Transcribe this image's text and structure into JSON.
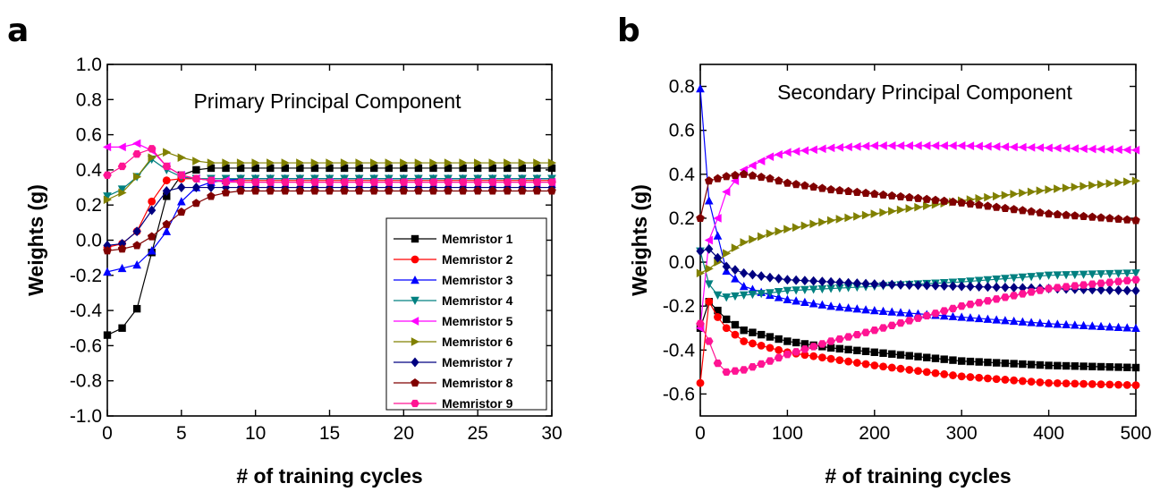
{
  "chart_data": [
    {
      "panel": "a",
      "type": "line",
      "title": "Primary Principal Component",
      "xlabel": "# of training cycles",
      "ylabel": "Weights (g)",
      "xlim": [
        0,
        30
      ],
      "ylim": [
        -1.0,
        1.0
      ],
      "xticks": [
        "0",
        "5",
        "10",
        "15",
        "20",
        "25",
        "30"
      ],
      "yticks": [
        "-1.0",
        "-0.8",
        "-0.6",
        "-0.4",
        "-0.2",
        "0.0",
        "0.2",
        "0.4",
        "0.6",
        "0.8",
        "1.0"
      ],
      "legend_position": "lower-right",
      "x": [
        0,
        1,
        2,
        3,
        4,
        5,
        6,
        7,
        8,
        9,
        10,
        11,
        12,
        13,
        14,
        15,
        16,
        17,
        18,
        19,
        20,
        21,
        22,
        23,
        24,
        25,
        26,
        27,
        28,
        29,
        30
      ],
      "series": [
        {
          "name": "Memristor 1",
          "color": "#000000",
          "marker": "square",
          "values": [
            -0.54,
            -0.5,
            -0.39,
            -0.07,
            0.25,
            0.37,
            0.4,
            0.41,
            0.41,
            0.41,
            0.41,
            0.41,
            0.41,
            0.41,
            0.41,
            0.41,
            0.41,
            0.41,
            0.41,
            0.41,
            0.41,
            0.41,
            0.41,
            0.41,
            0.41,
            0.41,
            0.41,
            0.41,
            0.41,
            0.41,
            0.41
          ]
        },
        {
          "name": "Memristor 2",
          "color": "#ff0000",
          "marker": "circle",
          "values": [
            -0.04,
            -0.02,
            0.05,
            0.22,
            0.34,
            0.35,
            0.35,
            0.34,
            0.34,
            0.34,
            0.34,
            0.34,
            0.34,
            0.34,
            0.34,
            0.34,
            0.34,
            0.34,
            0.34,
            0.34,
            0.34,
            0.34,
            0.34,
            0.34,
            0.34,
            0.34,
            0.34,
            0.34,
            0.34,
            0.34,
            0.34
          ]
        },
        {
          "name": "Memristor 3",
          "color": "#0000ff",
          "marker": "triangle-up",
          "values": [
            -0.18,
            -0.16,
            -0.14,
            -0.06,
            0.05,
            0.22,
            0.3,
            0.33,
            0.34,
            0.35,
            0.35,
            0.35,
            0.35,
            0.35,
            0.35,
            0.35,
            0.35,
            0.35,
            0.35,
            0.35,
            0.35,
            0.35,
            0.35,
            0.35,
            0.35,
            0.35,
            0.35,
            0.35,
            0.35,
            0.35,
            0.35
          ]
        },
        {
          "name": "Memristor 4",
          "color": "#008080",
          "marker": "triangle-down",
          "values": [
            0.25,
            0.29,
            0.36,
            0.46,
            0.4,
            0.36,
            0.35,
            0.35,
            0.35,
            0.35,
            0.35,
            0.35,
            0.35,
            0.35,
            0.35,
            0.35,
            0.35,
            0.35,
            0.35,
            0.35,
            0.35,
            0.35,
            0.35,
            0.35,
            0.35,
            0.35,
            0.35,
            0.35,
            0.35,
            0.35,
            0.35
          ]
        },
        {
          "name": "Memristor 5",
          "color": "#ff00ff",
          "marker": "triangle-left",
          "values": [
            0.53,
            0.53,
            0.55,
            0.51,
            0.42,
            0.37,
            0.35,
            0.34,
            0.34,
            0.33,
            0.33,
            0.33,
            0.33,
            0.33,
            0.33,
            0.33,
            0.33,
            0.33,
            0.33,
            0.33,
            0.33,
            0.33,
            0.33,
            0.33,
            0.33,
            0.33,
            0.33,
            0.33,
            0.33,
            0.33,
            0.33
          ]
        },
        {
          "name": "Memristor 6",
          "color": "#808000",
          "marker": "triangle-right",
          "values": [
            0.23,
            0.27,
            0.36,
            0.47,
            0.5,
            0.47,
            0.45,
            0.44,
            0.44,
            0.44,
            0.44,
            0.44,
            0.44,
            0.44,
            0.44,
            0.44,
            0.44,
            0.44,
            0.44,
            0.44,
            0.44,
            0.44,
            0.44,
            0.44,
            0.44,
            0.44,
            0.44,
            0.44,
            0.44,
            0.44,
            0.44
          ]
        },
        {
          "name": "Memristor 7",
          "color": "#000080",
          "marker": "diamond",
          "values": [
            -0.03,
            -0.02,
            0.05,
            0.17,
            0.28,
            0.3,
            0.3,
            0.3,
            0.3,
            0.3,
            0.3,
            0.3,
            0.3,
            0.3,
            0.3,
            0.3,
            0.3,
            0.3,
            0.3,
            0.3,
            0.3,
            0.3,
            0.3,
            0.3,
            0.3,
            0.3,
            0.3,
            0.3,
            0.3,
            0.3,
            0.3
          ]
        },
        {
          "name": "Memristor 8",
          "color": "#800000",
          "marker": "pentagon",
          "values": [
            -0.06,
            -0.05,
            -0.03,
            0.02,
            0.09,
            0.16,
            0.21,
            0.25,
            0.27,
            0.28,
            0.28,
            0.28,
            0.28,
            0.28,
            0.28,
            0.28,
            0.28,
            0.28,
            0.28,
            0.28,
            0.28,
            0.28,
            0.28,
            0.28,
            0.28,
            0.28,
            0.28,
            0.28,
            0.28,
            0.28,
            0.28
          ]
        },
        {
          "name": "Memristor 9",
          "color": "#ff1493",
          "marker": "hexagon",
          "values": [
            0.37,
            0.42,
            0.49,
            0.52,
            0.42,
            0.37,
            0.35,
            0.34,
            0.33,
            0.33,
            0.33,
            0.33,
            0.33,
            0.33,
            0.33,
            0.33,
            0.33,
            0.33,
            0.33,
            0.33,
            0.33,
            0.33,
            0.33,
            0.33,
            0.33,
            0.33,
            0.33,
            0.33,
            0.33,
            0.33,
            0.33
          ]
        }
      ]
    },
    {
      "panel": "b",
      "type": "line",
      "title": "Secondary Principal Component",
      "xlabel": "# of training cycles",
      "ylabel": "Weights (g)",
      "xlim": [
        0,
        500
      ],
      "ylim": [
        -0.7,
        0.9
      ],
      "xticks": [
        "0",
        "100",
        "200",
        "300",
        "400",
        "500"
      ],
      "yticks": [
        "-0.6",
        "-0.4",
        "-0.2",
        "0.0",
        "0.2",
        "0.4",
        "0.6",
        "0.8"
      ],
      "x_step": 10,
      "series_anchors": [
        {
          "color": "#000000",
          "marker": "square",
          "x": [
            0,
            10,
            20,
            30,
            50,
            80,
            100,
            150,
            200,
            300,
            400,
            500
          ],
          "y": [
            -0.3,
            -0.18,
            -0.22,
            -0.26,
            -0.31,
            -0.34,
            -0.36,
            -0.39,
            -0.41,
            -0.45,
            -0.47,
            -0.48
          ]
        },
        {
          "color": "#ff0000",
          "marker": "circle",
          "x": [
            0,
            10,
            20,
            30,
            50,
            80,
            100,
            150,
            200,
            300,
            400,
            500
          ],
          "y": [
            -0.55,
            -0.18,
            -0.25,
            -0.3,
            -0.36,
            -0.39,
            -0.41,
            -0.44,
            -0.47,
            -0.52,
            -0.55,
            -0.56
          ]
        },
        {
          "color": "#0000ff",
          "marker": "triangle-up",
          "x": [
            0,
            10,
            20,
            30,
            50,
            80,
            100,
            150,
            200,
            300,
            400,
            500
          ],
          "y": [
            0.79,
            0.28,
            0.12,
            -0.04,
            -0.11,
            -0.15,
            -0.17,
            -0.2,
            -0.22,
            -0.25,
            -0.28,
            -0.3
          ]
        },
        {
          "color": "#008080",
          "marker": "triangle-down",
          "x": [
            0,
            10,
            20,
            30,
            50,
            80,
            100,
            150,
            200,
            300,
            400,
            500
          ],
          "y": [
            0.05,
            -0.1,
            -0.15,
            -0.16,
            -0.15,
            -0.14,
            -0.13,
            -0.12,
            -0.11,
            -0.09,
            -0.06,
            -0.05
          ]
        },
        {
          "color": "#ff00ff",
          "marker": "triangle-left",
          "x": [
            0,
            10,
            20,
            30,
            50,
            80,
            100,
            150,
            200,
            300,
            400,
            500
          ],
          "y": [
            -0.3,
            0.1,
            0.2,
            0.32,
            0.42,
            0.48,
            0.5,
            0.52,
            0.53,
            0.53,
            0.52,
            0.51
          ]
        },
        {
          "color": "#808000",
          "marker": "triangle-right",
          "x": [
            0,
            10,
            20,
            30,
            50,
            80,
            100,
            150,
            200,
            300,
            400,
            500
          ],
          "y": [
            -0.05,
            -0.03,
            0.0,
            0.04,
            0.09,
            0.13,
            0.15,
            0.19,
            0.22,
            0.28,
            0.33,
            0.37
          ]
        },
        {
          "color": "#000080",
          "marker": "diamond",
          "x": [
            0,
            10,
            20,
            30,
            50,
            80,
            100,
            150,
            200,
            300,
            400,
            500
          ],
          "y": [
            0.05,
            0.06,
            0.02,
            -0.02,
            -0.05,
            -0.07,
            -0.08,
            -0.09,
            -0.1,
            -0.11,
            -0.12,
            -0.13
          ]
        },
        {
          "color": "#800000",
          "marker": "pentagon",
          "x": [
            0,
            10,
            20,
            30,
            50,
            80,
            100,
            150,
            200,
            300,
            400,
            500
          ],
          "y": [
            0.2,
            0.37,
            0.38,
            0.39,
            0.4,
            0.38,
            0.36,
            0.33,
            0.31,
            0.27,
            0.22,
            0.19
          ]
        },
        {
          "color": "#ff1493",
          "marker": "hexagon",
          "x": [
            0,
            10,
            20,
            30,
            50,
            80,
            100,
            150,
            200,
            300,
            400,
            500
          ],
          "y": [
            -0.28,
            -0.36,
            -0.46,
            -0.5,
            -0.49,
            -0.45,
            -0.42,
            -0.36,
            -0.31,
            -0.2,
            -0.12,
            -0.08
          ]
        }
      ]
    }
  ]
}
